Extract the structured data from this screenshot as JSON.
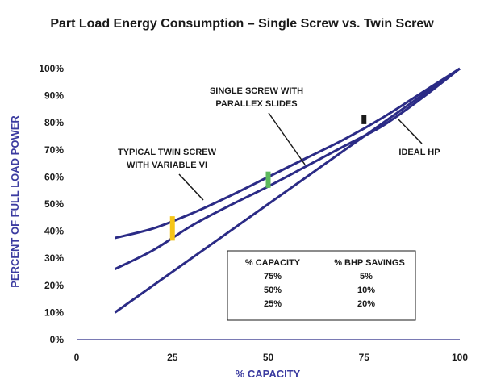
{
  "chart_data": {
    "type": "line",
    "title": "Part Load Energy Consumption – Single Screw vs. Twin Screw",
    "xlabel": "% CAPACITY",
    "ylabel": "PERCENT OF FULL LOAD POWER",
    "xlim": [
      0,
      100
    ],
    "ylim": [
      0,
      100
    ],
    "x_ticks": [
      "0",
      "25",
      "50",
      "75",
      "100"
    ],
    "y_ticks": [
      "0%",
      "10%",
      "20%",
      "30%",
      "40%",
      "50%",
      "60%",
      "70%",
      "80%",
      "90%",
      "100%"
    ],
    "grid": false,
    "series": [
      {
        "name": "TYPICAL TWIN SCREW WITH VARIABLE VI",
        "x": [
          10,
          20,
          30,
          40,
          50,
          60,
          70,
          80,
          90,
          100
        ],
        "y": [
          37.5,
          41,
          46.5,
          53,
          60,
          67,
          74,
          82,
          91,
          100
        ]
      },
      {
        "name": "SINGLE SCREW WITH PARALLEX SLIDES",
        "x": [
          10,
          20,
          30,
          40,
          50,
          60,
          70,
          80,
          90,
          100
        ],
        "y": [
          26,
          33,
          42,
          49.5,
          56.5,
          64,
          71.5,
          79,
          89,
          100
        ]
      },
      {
        "name": "IDEAL HP",
        "x": [
          10,
          100
        ],
        "y": [
          10,
          100
        ]
      }
    ],
    "annotations": [
      {
        "text_lines": [
          "TYPICAL TWIN SCREW",
          "WITH VARIABLE VI"
        ]
      },
      {
        "text_lines": [
          "SINGLE SCREW WITH",
          "PARALLEX SLIDES"
        ]
      },
      {
        "text_lines": [
          "IDEAL HP"
        ]
      }
    ],
    "savings_bars": [
      {
        "x": 25,
        "y_low": 36.5,
        "y_high": 45.5,
        "color": "#f5c518"
      },
      {
        "x": 50,
        "y_low": 56,
        "y_high": 62,
        "color": "#5cb85c"
      },
      {
        "x": 75,
        "y_low": 79.5,
        "y_high": 83,
        "color": "#1a1a1a"
      }
    ],
    "table": {
      "headers": [
        "% CAPACITY",
        "% BHP SAVINGS"
      ],
      "rows": [
        {
          "capacity": "75%",
          "savings": "5%",
          "color": "#1a1a1a"
        },
        {
          "capacity": "50%",
          "savings": "10%",
          "color": "#5cb85c"
        },
        {
          "capacity": "25%",
          "savings": "20%",
          "color": "#f5c518"
        }
      ]
    },
    "colors": {
      "curve": "#2b2b86",
      "axis_label": "#3b3ba0"
    }
  }
}
